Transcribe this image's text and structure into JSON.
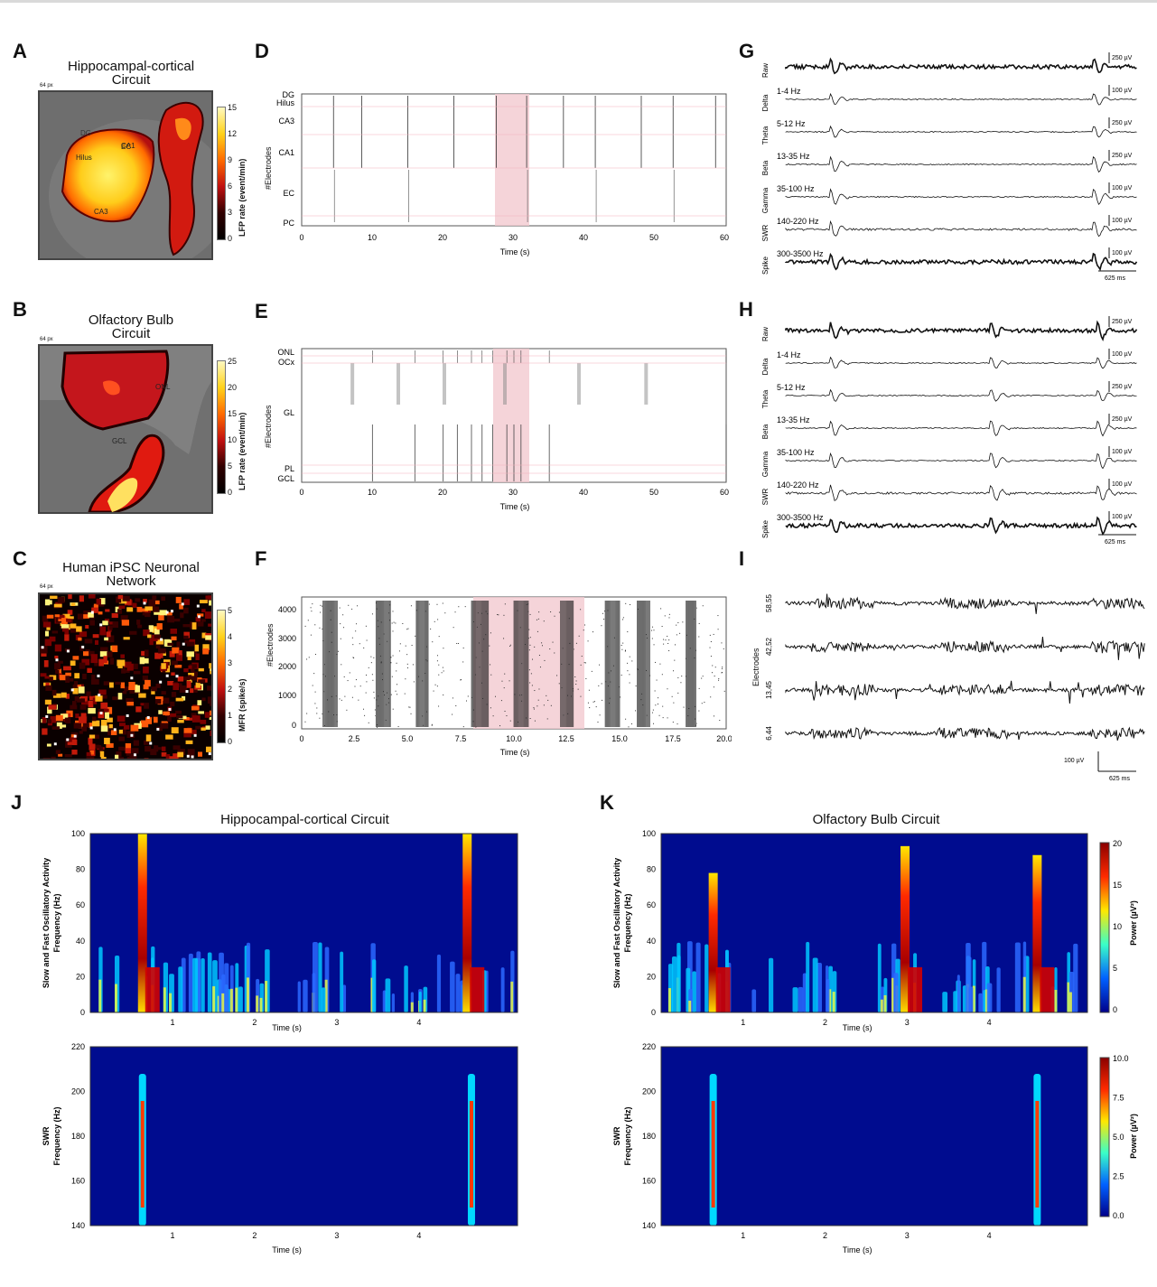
{
  "panels": {
    "A": {
      "letter": "A",
      "title_line1": "Hippocampal-cortical",
      "title_line2": "Circuit",
      "scale": "64 px",
      "colorbar_ticks": [
        "15",
        "12",
        "9",
        "6",
        "3",
        "0"
      ],
      "colorbar_label": "LFP rate (event/min)",
      "regions": [
        "EC",
        "DG",
        "CA1",
        "Hilus",
        "CA3"
      ]
    },
    "B": {
      "letter": "B",
      "title_line1": "Olfactory Bulb",
      "title_line2": "Circuit",
      "scale": "64 px",
      "colorbar_ticks": [
        "25",
        "20",
        "15",
        "10",
        "5",
        "0"
      ],
      "colorbar_label": "LFP rate (event/min)",
      "regions": [
        "ONL",
        "GCL"
      ]
    },
    "C": {
      "letter": "C",
      "title_line1": "Human iPSC Neuronal",
      "title_line2": "Network",
      "scale": "64 px",
      "colorbar_ticks": [
        "5",
        "4",
        "3",
        "2",
        "1",
        "0"
      ],
      "colorbar_label": "MFR (spike/s)"
    },
    "D": {
      "letter": "D",
      "ylabel": "#Electrodes",
      "xlabel": "Time (s)",
      "regions": [
        "DG",
        "Hilus",
        "CA3",
        "CA1",
        "EC",
        "PC"
      ],
      "xticks": [
        "0",
        "10",
        "20",
        "30",
        "40",
        "50",
        "60"
      ]
    },
    "E": {
      "letter": "E",
      "ylabel": "#Electrodes",
      "xlabel": "Time (s)",
      "regions": [
        "ONL",
        "OCx",
        "GL",
        "PL",
        "GCL"
      ],
      "xticks": [
        "0",
        "10",
        "20",
        "30",
        "40",
        "50",
        "60"
      ]
    },
    "F": {
      "letter": "F",
      "ylabel": "#Electrodes",
      "xlabel": "Time (s)",
      "yticks": [
        "4000",
        "3000",
        "2000",
        "1000",
        "0"
      ],
      "xticks": [
        "0",
        "2.5",
        "5.0",
        "7.5",
        "10.0",
        "12.5",
        "15.0",
        "17.5",
        "20.0"
      ]
    },
    "G": {
      "letter": "G",
      "rows": [
        {
          "name": "Raw",
          "band": "",
          "scale": "250 µV"
        },
        {
          "name": "Delta",
          "band": "1-4 Hz",
          "scale": "100 µV"
        },
        {
          "name": "Theta",
          "band": "5-12 Hz",
          "scale": "250 µV"
        },
        {
          "name": "Beta",
          "band": "13-35 Hz",
          "scale": "250 µV"
        },
        {
          "name": "Gamma",
          "band": "35-100 Hz",
          "scale": "100 µV"
        },
        {
          "name": "SWR",
          "band": "140-220 Hz",
          "scale": "100 µV"
        },
        {
          "name": "Spike",
          "band": "300-3500 Hz",
          "scale": "100 µV"
        }
      ],
      "timescale": "625 ms"
    },
    "H": {
      "letter": "H",
      "rows": [
        {
          "name": "Raw",
          "band": "",
          "scale": "250 µV"
        },
        {
          "name": "Delta",
          "band": "1-4 Hz",
          "scale": "100 µV"
        },
        {
          "name": "Theta",
          "band": "5-12 Hz",
          "scale": "250 µV"
        },
        {
          "name": "Beta",
          "band": "13-35 Hz",
          "scale": "250 µV"
        },
        {
          "name": "Gamma",
          "band": "35-100 Hz",
          "scale": "100 µV"
        },
        {
          "name": "SWR",
          "band": "140-220 Hz",
          "scale": "100 µV"
        },
        {
          "name": "Spike",
          "band": "300-3500 Hz",
          "scale": "100 µV"
        }
      ],
      "timescale": "625 ms"
    },
    "I": {
      "letter": "I",
      "ylabel": "Electrodes",
      "electrodes": [
        "58,55",
        "42,52",
        "13,45",
        "6,44"
      ],
      "vscale": "100 µV",
      "timescale": "625 ms"
    },
    "J": {
      "letter": "J",
      "title": "Hippocampal-cortical Circuit",
      "top_ylabel1": "Slow and Fast Oscillatory Activity",
      "top_ylabel2": "Frequency (Hz)",
      "top_yticks": [
        "100",
        "80",
        "60",
        "40",
        "20",
        "0"
      ],
      "bot_ylabel1": "SWR",
      "bot_ylabel2": "Frequency (Hz)",
      "bot_yticks": [
        "220",
        "200",
        "180",
        "160",
        "140"
      ],
      "xticks": [
        "1",
        "2",
        "3",
        "4"
      ],
      "xlabel": "Time (s)"
    },
    "K": {
      "letter": "K",
      "title": "Olfactory Bulb Circuit",
      "top_ylabel1": "Slow and Fast Oscillatory Activity",
      "top_ylabel2": "Frequency (Hz)",
      "top_yticks": [
        "100",
        "80",
        "60",
        "40",
        "20",
        "0"
      ],
      "bot_ylabel1": "SWR",
      "bot_ylabel2": "Frequency (Hz)",
      "bot_yticks": [
        "220",
        "200",
        "180",
        "160",
        "140"
      ],
      "xticks": [
        "1",
        "2",
        "3",
        "4"
      ],
      "xlabel": "Time (s)",
      "top_cbar_ticks": [
        "20",
        "15",
        "10",
        "5",
        "0"
      ],
      "top_cbar_label": "Power (µV²)",
      "bot_cbar_ticks": [
        "10.0",
        "7.5",
        "5.0",
        "2.5",
        "0.0"
      ],
      "bot_cbar_label": "Power (µV²)"
    }
  }
}
